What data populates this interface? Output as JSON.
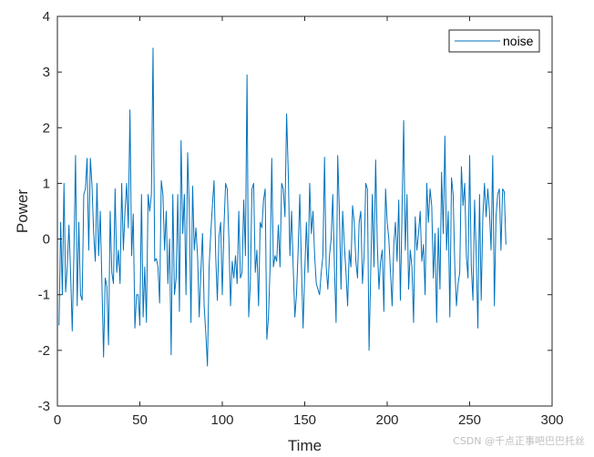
{
  "chart_data": {
    "type": "line",
    "xlabel": "Time",
    "ylabel": "Power",
    "xlim": [
      0,
      300
    ],
    "ylim": [
      -3,
      4
    ],
    "xticks": [
      0,
      50,
      100,
      150,
      200,
      250,
      300
    ],
    "yticks": [
      -3,
      -2,
      -1,
      0,
      1,
      2,
      3,
      4
    ],
    "legend": {
      "placement": "top-right"
    },
    "grid": false,
    "series": [
      {
        "name": "noise",
        "color": "#0072BD",
        "y": [
          -1.55,
          0.3,
          -1.0,
          1.0,
          -0.95,
          -0.5,
          0.25,
          -0.6,
          -1.65,
          -0.3,
          1.5,
          -1.2,
          0.3,
          -1.0,
          -1.1,
          0.8,
          0.9,
          1.45,
          -0.2,
          1.45,
          0.95,
          0.1,
          -0.4,
          1.0,
          -0.3,
          0.5,
          -0.8,
          -2.12,
          -0.7,
          -0.85,
          -1.9,
          0.5,
          -0.6,
          -0.8,
          0.9,
          -0.6,
          -0.2,
          -0.8,
          1.0,
          -0.2,
          0.5,
          1.0,
          0.2,
          2.32,
          -0.3,
          0.45,
          -1.6,
          -1.0,
          -1.0,
          -1.55,
          0.8,
          -1.4,
          -0.5,
          -1.5,
          0.8,
          0.5,
          0.8,
          3.43,
          -0.4,
          -0.35,
          -0.5,
          -1.15,
          1.05,
          0.8,
          -0.2,
          0.5,
          -0.8,
          0.0,
          -2.08,
          0.8,
          -1.0,
          -0.7,
          0.8,
          -1.3,
          1.77,
          0.1,
          0.8,
          -1.0,
          1.55,
          0.5,
          -1.5,
          0.95,
          -0.2,
          0.2,
          -0.3,
          -1.4,
          -0.6,
          0.1,
          -1.2,
          -1.7,
          -2.28,
          -0.5,
          0.1,
          0.6,
          1.05,
          -0.3,
          -1.1,
          0.05,
          0.3,
          -1.0,
          0.2,
          1.0,
          0.9,
          0.0,
          -1.2,
          -0.4,
          -0.7,
          -0.3,
          -0.8,
          0.5,
          -0.7,
          -0.6,
          0.7,
          -0.3,
          2.95,
          -1.4,
          -0.8,
          0.9,
          1.0,
          -0.6,
          -0.2,
          -1.2,
          0.3,
          0.2,
          0.7,
          0.9,
          -1.8,
          -1.4,
          -0.5,
          1.45,
          -0.5,
          -0.3,
          -0.4,
          0.25,
          -0.5,
          1.0,
          0.9,
          0.4,
          2.25,
          1.2,
          -0.3,
          0.5,
          -0.5,
          -1.4,
          -1.0,
          -0.2,
          0.8,
          -0.5,
          -1.6,
          -0.6,
          0.3,
          -0.6,
          1.0,
          0.1,
          0.5,
          -0.3,
          -0.8,
          -0.9,
          -1.0,
          -0.6,
          -0.3,
          1.47,
          -0.5,
          -0.9,
          -0.3,
          0.0,
          0.8,
          -0.5,
          -1.5,
          1.5,
          0.5,
          -0.9,
          0.5,
          -0.1,
          -0.6,
          -1.2,
          -0.2,
          -0.5,
          0.6,
          0.3,
          -0.4,
          -0.7,
          0.3,
          0.5,
          -0.8,
          -0.3,
          1.0,
          0.9,
          -2.0,
          -0.6,
          0.8,
          -0.5,
          1.42,
          -0.1,
          -0.9,
          -0.4,
          -0.2,
          -1.3,
          0.9,
          0.3,
          0.0,
          -0.6,
          -1.2,
          -0.1,
          0.3,
          -0.4,
          0.7,
          -1.1,
          0.5,
          2.13,
          -0.2,
          0.8,
          -0.9,
          -0.2,
          -0.5,
          -1.5,
          0.4,
          -0.2,
          0.1,
          0.5,
          -0.4,
          -0.1,
          -1.0,
          1.0,
          0.3,
          0.9,
          0.6,
          -0.7,
          0.1,
          -1.5,
          0.2,
          -0.9,
          1.2,
          0.1,
          1.85,
          -0.2,
          0.5,
          -1.4,
          1.1,
          0.8,
          -0.5,
          -1.2,
          -0.8,
          -0.6,
          1.3,
          0.6,
          1.0,
          -0.3,
          -0.7,
          1.5,
          -0.5,
          -1.1,
          0.7,
          -0.3,
          -1.6,
          0.8,
          -1.1,
          0.4,
          1.0,
          0.4,
          0.9,
          0.5,
          -0.2,
          1.5,
          -1.2,
          0.4,
          0.8,
          0.9,
          -0.2,
          0.9,
          0.85,
          -0.1
        ]
      }
    ]
  },
  "watermark": "CSDN @千点正事吧巴巴托丝"
}
